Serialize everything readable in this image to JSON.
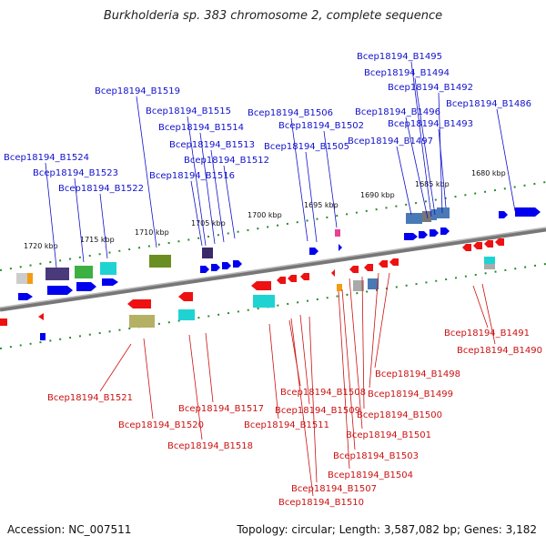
{
  "title": "Burkholderia sp. 383 chromosome 2, complete sequence",
  "footer": {
    "accession": "Accession: NC_007511",
    "summary": "Topology: circular; Length: 3,587,082 bp; Genes: 3,182"
  },
  "scale_labels": [
    "1720 kbp",
    "1715 kbp",
    "1710 kbp",
    "1705 kbp",
    "1700 kbp",
    "1695 kbp",
    "1690 kbp",
    "1685 kbp",
    "1680 kbp"
  ],
  "colors": {
    "forward_label": "#1111cc",
    "reverse_label": "#cc1111",
    "forward_gene": "#0000ee",
    "reverse_gene": "#ee1111",
    "backbone": "#888888"
  },
  "forward_labels": [
    "Bcep18194_B1495",
    "Bcep18194_B1494",
    "Bcep18194_B1492",
    "Bcep18194_B1519",
    "Bcep18194_B1486",
    "Bcep18194_B1515",
    "Bcep18194_B1506",
    "Bcep18194_B1496",
    "Bcep18194_B1514",
    "Bcep18194_B1502",
    "Bcep18194_B1493",
    "Bcep18194_B1513",
    "Bcep18194_B1497",
    "Bcep18194_B1505",
    "Bcep18194_B1512",
    "Bcep18194_B1524",
    "Bcep18194_B1523",
    "Bcep18194_B1516",
    "Bcep18194_B1522"
  ],
  "reverse_labels": [
    "Bcep18194_B1491",
    "Bcep18194_B1490",
    "Bcep18194_B1498",
    "Bcep18194_B1521",
    "Bcep18194_B1508",
    "Bcep18194_B1499",
    "Bcep18194_B1509",
    "Bcep18194_B1517",
    "Bcep18194_B1500",
    "Bcep18194_B1520",
    "Bcep18194_B1511",
    "Bcep18194_B1501",
    "Bcep18194_B1518",
    "Bcep18194_B1503",
    "Bcep18194_B1504",
    "Bcep18194_B1507",
    "Bcep18194_B1510"
  ]
}
